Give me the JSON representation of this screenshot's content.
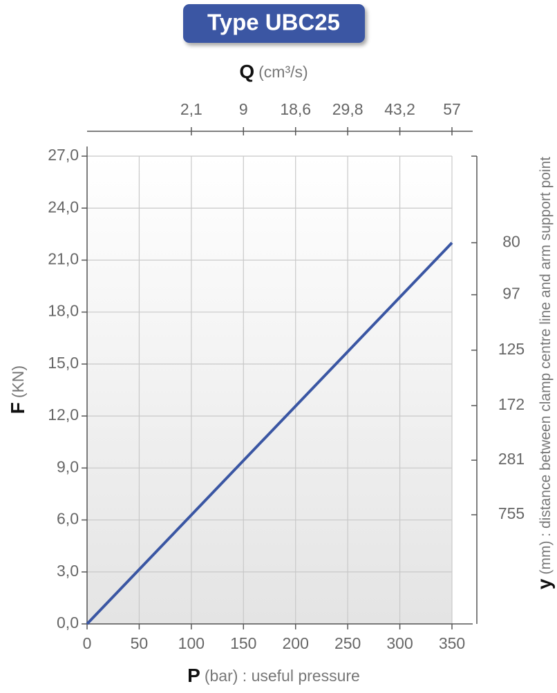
{
  "chart_data": {
    "type": "line",
    "title": "Type UBC25",
    "x_label": "P",
    "x_label_unit": "(bar) : useful pressure",
    "y_label": "F",
    "y_label_unit": "(KN)",
    "x2_label": "Q",
    "x2_label_unit": "(cm³/s)",
    "y2_label": "y",
    "y2_label_unit": "(mm) : distance between clamp centre line and arm support point",
    "series": [
      {
        "name": "F",
        "color": "#3a56a3",
        "x": [
          0,
          350
        ],
        "values": [
          0,
          22
        ]
      }
    ],
    "xlim": [
      0,
      350
    ],
    "xticks": [
      0,
      50,
      100,
      150,
      200,
      250,
      300,
      350
    ],
    "ylim": [
      0,
      27
    ],
    "yticks": [
      {
        "value": 0,
        "label": "0,0"
      },
      {
        "value": 3,
        "label": "3,0"
      },
      {
        "value": 6,
        "label": "6,0"
      },
      {
        "value": 9,
        "label": "9,0"
      },
      {
        "value": 12,
        "label": "12,0"
      },
      {
        "value": 15,
        "label": "15,0"
      },
      {
        "value": 18,
        "label": "18,0"
      },
      {
        "value": 21,
        "label": "21,0"
      },
      {
        "value": 24,
        "label": "24,0"
      },
      {
        "value": 27,
        "label": "27,0"
      }
    ],
    "q_at_p": [
      {
        "p": 100,
        "q": 2.1,
        "label": "2,1"
      },
      {
        "p": 150,
        "q": 9,
        "label": "9"
      },
      {
        "p": 200,
        "q": 18.6,
        "label": "18,6"
      },
      {
        "p": 250,
        "q": 29.8,
        "label": "29,8"
      },
      {
        "p": 300,
        "q": 43.2,
        "label": "43,2"
      },
      {
        "p": 350,
        "q": 57,
        "label": "57"
      }
    ],
    "y_at_f": [
      {
        "f": 22,
        "y": 80
      },
      {
        "f": 19,
        "y": 97
      },
      {
        "f": 15.8,
        "y": 125
      },
      {
        "f": 12.6,
        "y": 172
      },
      {
        "f": 9.45,
        "y": 281
      },
      {
        "f": 6.3,
        "y": 755
      }
    ],
    "grid": true
  }
}
